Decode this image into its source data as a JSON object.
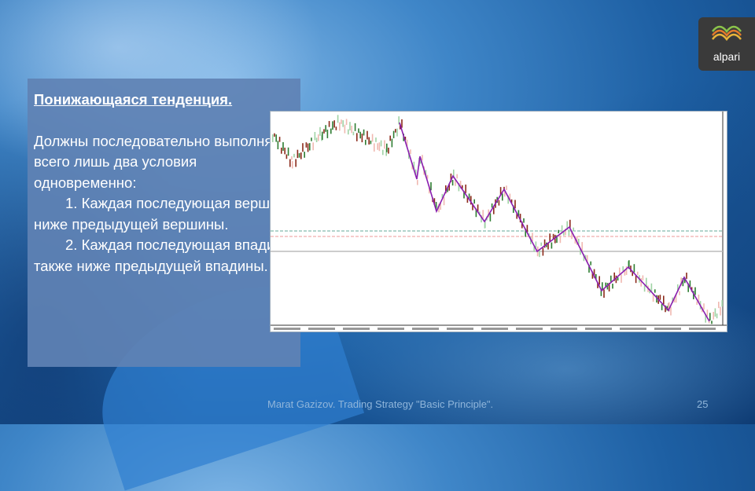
{
  "logo": {
    "text": "alpari"
  },
  "textbox": {
    "title": "Понижающаяся тенденция.",
    "intro": "Должны последовательно выполнятся всего лишь два условия одновременно:",
    "item1": "1. Каждая последующая вершина ниже предыдущей вершины.",
    "item2": "2. Каждая последующая впадина также ниже предыдущей впадины."
  },
  "chart": {
    "zigzag_color": "#8a1fb0"
  },
  "footer": {
    "text": "Marat Gazizov. Trading Strategy \"Basic Principle\".",
    "page": "25"
  }
}
